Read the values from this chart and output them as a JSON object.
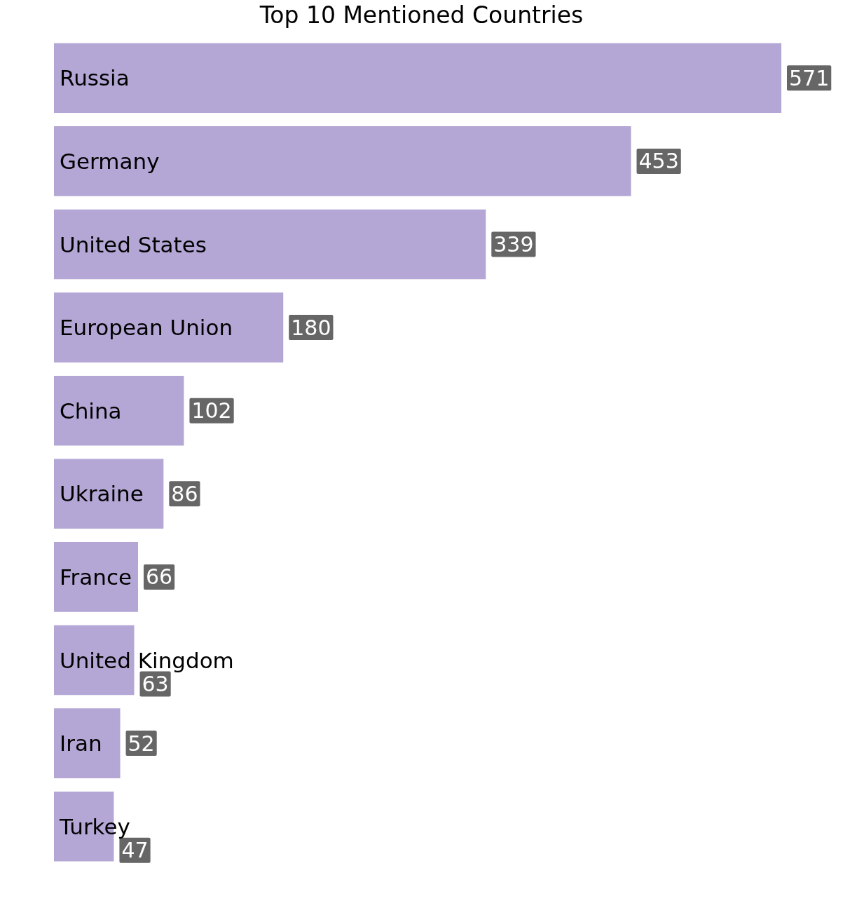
{
  "chart_data": {
    "type": "bar",
    "orientation": "horizontal",
    "title": "Top 10 Mentioned Countries",
    "categories": [
      "Russia",
      "Germany",
      "United States",
      "European Union",
      "China",
      "Ukraine",
      "France",
      "United Kingdom",
      "Iran",
      "Turkey"
    ],
    "values": [
      571,
      453,
      339,
      180,
      102,
      86,
      66,
      63,
      52,
      47
    ],
    "color": "#b4a7d6",
    "data_labels": true
  }
}
